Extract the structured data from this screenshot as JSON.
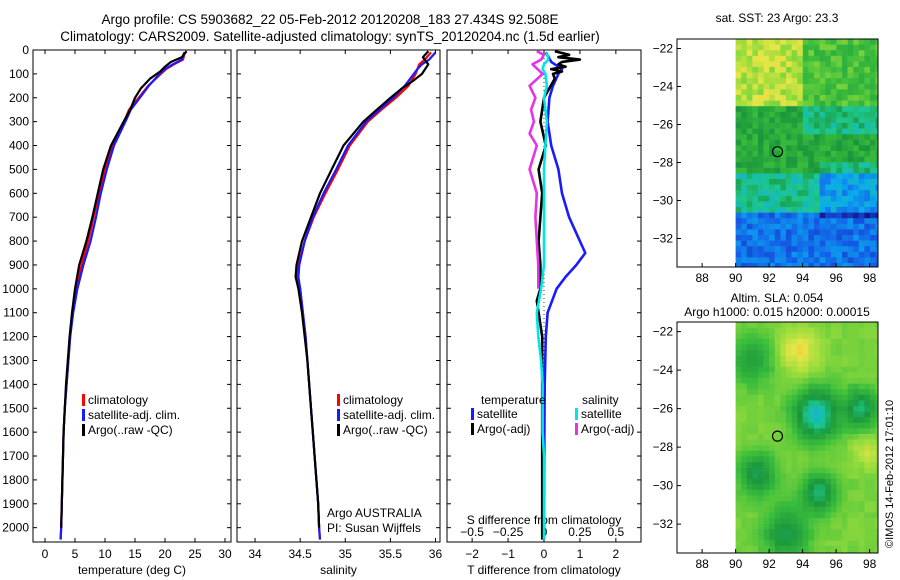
{
  "header": {
    "title_line1": "Argo profile: CS 5903682_22 05-Feb-2012 20120208_183 27.434S 92.508E",
    "title_line2": "Climatology: CARS2009. Satellite-adjusted climatology: synTS_20120204.nc (1.5d earlier)"
  },
  "colors": {
    "climatology": "#ff0000",
    "satellite": "#1a1aff",
    "argo": "#000000",
    "sal_satellite": "#00e5e5",
    "sal_argo": "#e633e6"
  },
  "chart_data": [
    {
      "type": "line",
      "id": "temperature",
      "xlabel": "temperature (deg C)",
      "xlim": [
        -2,
        31
      ],
      "xticks": [
        0,
        5,
        10,
        15,
        20,
        25,
        30
      ],
      "ylim": [
        2060,
        0
      ],
      "yticks": [
        0,
        100,
        200,
        300,
        400,
        500,
        600,
        700,
        800,
        900,
        1000,
        1100,
        1200,
        1300,
        1400,
        1500,
        1600,
        1700,
        1800,
        1900,
        2000
      ],
      "legend": [
        "climatology",
        "satellite-adj. clim.",
        "Argo(..raw -QC)"
      ],
      "series": [
        {
          "name": "climatology",
          "depth": [
            10,
            40,
            60,
            80,
            100,
            150,
            200,
            250,
            300,
            400,
            500,
            600,
            700,
            800,
            900,
            1000,
            1100,
            1200,
            1300,
            1400,
            1500,
            1600,
            1700,
            1800,
            1900,
            2000,
            2050
          ],
          "values": [
            23.3,
            23.0,
            21.5,
            20.2,
            19.3,
            17.2,
            15.6,
            14.0,
            13.2,
            11.3,
            10.0,
            9.0,
            8.1,
            7.2,
            6.1,
            5.2,
            4.6,
            4.2,
            3.9,
            3.6,
            3.3,
            3.1,
            3.0,
            2.9,
            2.8,
            2.7,
            2.6
          ]
        },
        {
          "name": "satellite-adj. clim.",
          "depth": [
            10,
            40,
            60,
            80,
            100,
            150,
            200,
            250,
            300,
            400,
            500,
            600,
            700,
            800,
            900,
            1000,
            1100,
            1200,
            1300,
            1400,
            1500,
            1600,
            1700,
            1800,
            1900,
            2000,
            2050
          ],
          "values": [
            23.2,
            22.8,
            21.3,
            20.0,
            19.1,
            17.3,
            15.8,
            14.3,
            13.4,
            11.5,
            10.3,
            9.3,
            8.5,
            7.6,
            6.4,
            5.4,
            4.7,
            4.2,
            3.9,
            3.6,
            3.3,
            3.1,
            3.0,
            2.9,
            2.8,
            2.7,
            2.6
          ]
        },
        {
          "name": "Argo(..raw -QC)",
          "depth": [
            5,
            30,
            50,
            70,
            90,
            120,
            160,
            200,
            250,
            300,
            400,
            500,
            600,
            700,
            800,
            900,
            1000,
            1100,
            1200,
            1300,
            1400,
            1500,
            1600,
            1700,
            1800,
            1900,
            2000
          ],
          "values": [
            23.6,
            22.8,
            21.0,
            20.0,
            19.2,
            17.5,
            16.0,
            15.0,
            14.2,
            13.1,
            11.0,
            9.7,
            8.8,
            7.9,
            6.9,
            5.7,
            5.0,
            4.5,
            4.1,
            3.8,
            3.5,
            3.3,
            3.1,
            3.0,
            2.9,
            2.8,
            2.7
          ]
        }
      ]
    },
    {
      "type": "line",
      "id": "salinity",
      "xlabel": "salinity",
      "xlim": [
        33.8,
        36.05
      ],
      "xticks": [
        34,
        34.5,
        35,
        35.5,
        36
      ],
      "xtick_labels": [
        "34",
        "34.5",
        "35",
        "35.5",
        "36"
      ],
      "ylim": [
        2060,
        0
      ],
      "legend": [
        "climatology",
        "satellite-adj. clim.",
        "Argo(..raw -QC)"
      ],
      "annotation": [
        "Argo AUSTRALIA",
        "PI: Susan Wijffels"
      ],
      "series": [
        {
          "name": "climatology",
          "depth": [
            10,
            40,
            60,
            80,
            100,
            150,
            200,
            250,
            300,
            400,
            500,
            600,
            700,
            800,
            900,
            950,
            1000,
            1100,
            1200,
            1300,
            1400,
            1500,
            1600,
            1700,
            1800,
            1900,
            2000,
            2050
          ],
          "values": [
            35.95,
            35.88,
            35.82,
            35.8,
            35.78,
            35.7,
            35.56,
            35.4,
            35.25,
            35.05,
            34.92,
            34.78,
            34.65,
            34.55,
            34.48,
            34.47,
            34.5,
            34.53,
            34.56,
            34.58,
            34.6,
            34.62,
            34.64,
            34.66,
            34.68,
            34.7,
            34.71,
            34.72
          ]
        },
        {
          "name": "satellite-adj. clim.",
          "depth": [
            10,
            40,
            60,
            80,
            100,
            150,
            200,
            250,
            300,
            400,
            500,
            600,
            700,
            800,
            900,
            950,
            1000,
            1100,
            1200,
            1300,
            1400,
            1500,
            1600,
            1700,
            1800,
            1900,
            2000,
            2050
          ],
          "values": [
            36.0,
            35.93,
            35.85,
            35.8,
            35.76,
            35.66,
            35.53,
            35.38,
            35.23,
            35.03,
            34.9,
            34.76,
            34.64,
            34.55,
            34.49,
            34.48,
            34.5,
            34.53,
            34.56,
            34.58,
            34.6,
            34.62,
            34.64,
            34.66,
            34.68,
            34.7,
            34.71,
            34.72
          ]
        },
        {
          "name": "Argo(..raw -QC)",
          "depth": [
            5,
            30,
            60,
            100,
            130,
            160,
            200,
            250,
            300,
            400,
            500,
            600,
            700,
            800,
            900,
            950,
            1000,
            1100,
            1200,
            1300,
            1400,
            1500,
            1600,
            1700,
            1800,
            1900,
            2000
          ],
          "values": [
            35.92,
            35.86,
            35.92,
            35.85,
            35.75,
            35.63,
            35.5,
            35.35,
            35.2,
            34.98,
            34.85,
            34.72,
            34.62,
            34.52,
            34.46,
            34.45,
            34.48,
            34.52,
            34.55,
            34.58,
            34.6,
            34.62,
            34.64,
            34.66,
            34.68,
            34.7,
            34.71
          ]
        }
      ]
    },
    {
      "type": "line",
      "id": "differences",
      "xlabel": "T difference from climatology",
      "xlabel_top": "S difference from climatology",
      "xlim": [
        -2.7,
        2.7
      ],
      "xticks": [
        -2,
        -1,
        0,
        1,
        2
      ],
      "xticks_top": [
        -0.5,
        -0.25,
        0,
        0.25,
        0.5
      ],
      "ylim": [
        2060,
        0
      ],
      "legend_groups": [
        "temperature",
        "salinity"
      ],
      "legend": [
        "satellite",
        "Argo(-adj)",
        "satellite",
        "Argo(-adj)"
      ],
      "series": [
        {
          "name": "temperature satellite",
          "depth": [
            10,
            50,
            80,
            100,
            150,
            200,
            300,
            400,
            500,
            600,
            700,
            800,
            850,
            900,
            950,
            1000,
            1100,
            1200,
            1400,
            1600,
            2000,
            2050
          ],
          "values": [
            0.05,
            0.2,
            0.5,
            0.4,
            0.25,
            0.15,
            0.1,
            0.2,
            0.4,
            0.5,
            0.7,
            1.0,
            1.15,
            0.9,
            0.6,
            0.35,
            0.1,
            0.05,
            0.02,
            0.01,
            0.0,
            0.0
          ]
        },
        {
          "name": "temperature Argo(-adj)",
          "depth": [
            5,
            20,
            30,
            40,
            50,
            60,
            70,
            80,
            90,
            100,
            120,
            160,
            200,
            300,
            400,
            500,
            600,
            700,
            800,
            900,
            1000,
            1050,
            1100,
            1150,
            1200,
            1400,
            1600,
            1800,
            2000,
            2050
          ],
          "values": [
            0.3,
            0.7,
            0.4,
            1.0,
            0.5,
            0.4,
            0.6,
            0.2,
            0.5,
            0.25,
            0.3,
            0.15,
            0.0,
            -0.1,
            0.05,
            -0.15,
            -0.05,
            -0.1,
            -0.15,
            -0.1,
            -0.1,
            -0.2,
            -0.15,
            -0.1,
            -0.05,
            -0.05,
            -0.05,
            -0.05,
            -0.05,
            -0.05
          ]
        },
        {
          "name": "salinity satellite",
          "depth": [
            10,
            40,
            60,
            80,
            100,
            150,
            200,
            300,
            400,
            500,
            600,
            700,
            800,
            900,
            1000,
            1100,
            1200,
            1300,
            1400,
            1500,
            1600,
            1700,
            1800,
            1900,
            2000,
            2050
          ],
          "values": [
            0.02,
            0.03,
            0.0,
            -0.01,
            0.01,
            0.02,
            0.0,
            0.02,
            0.01,
            0.0,
            0.0,
            0.0,
            0.0,
            0.0,
            -0.02,
            -0.05,
            -0.04,
            -0.02,
            -0.01,
            -0.01,
            -0.01,
            0.0,
            0.0,
            0.0,
            0.0,
            0.0
          ]
        },
        {
          "name": "salinity Argo(-adj)",
          "depth": [
            5,
            20,
            40,
            60,
            100,
            150,
            200,
            250,
            300,
            350,
            400,
            500,
            600,
            700,
            800,
            900,
            1000
          ],
          "values": [
            -0.05,
            0.0,
            -0.02,
            -0.08,
            -0.01,
            -0.1,
            -0.06,
            -0.09,
            -0.07,
            -0.1,
            -0.05,
            -0.1,
            -0.05,
            -0.06,
            -0.05,
            -0.04,
            -0.04
          ]
        }
      ]
    },
    {
      "type": "heatmap",
      "id": "sst-map",
      "title": "sat. SST: 23 Argo: 23.3",
      "xlim": [
        86.5,
        98.5
      ],
      "ylim": [
        -33.5,
        -21.5
      ],
      "xticks": [
        88,
        90,
        92,
        94,
        96,
        98
      ],
      "yticks": [
        -22,
        -24,
        -26,
        -28,
        -30,
        -32
      ],
      "argo_position": [
        92.5,
        -27.43
      ]
    },
    {
      "type": "heatmap",
      "id": "sla-map",
      "title": "Altim. SLA: 0.054",
      "subtitle": "Argo h1000: 0.015 h2000: 0.00015",
      "xlim": [
        86.5,
        98.5
      ],
      "ylim": [
        -33.5,
        -21.5
      ],
      "xticks": [
        88,
        90,
        92,
        94,
        96,
        98
      ],
      "yticks": [
        -22,
        -24,
        -26,
        -28,
        -30,
        -32
      ],
      "argo_position": [
        92.5,
        -27.43
      ]
    }
  ],
  "footer": {
    "credit": "©IMOS 14-Feb-2012 17:01:10"
  }
}
